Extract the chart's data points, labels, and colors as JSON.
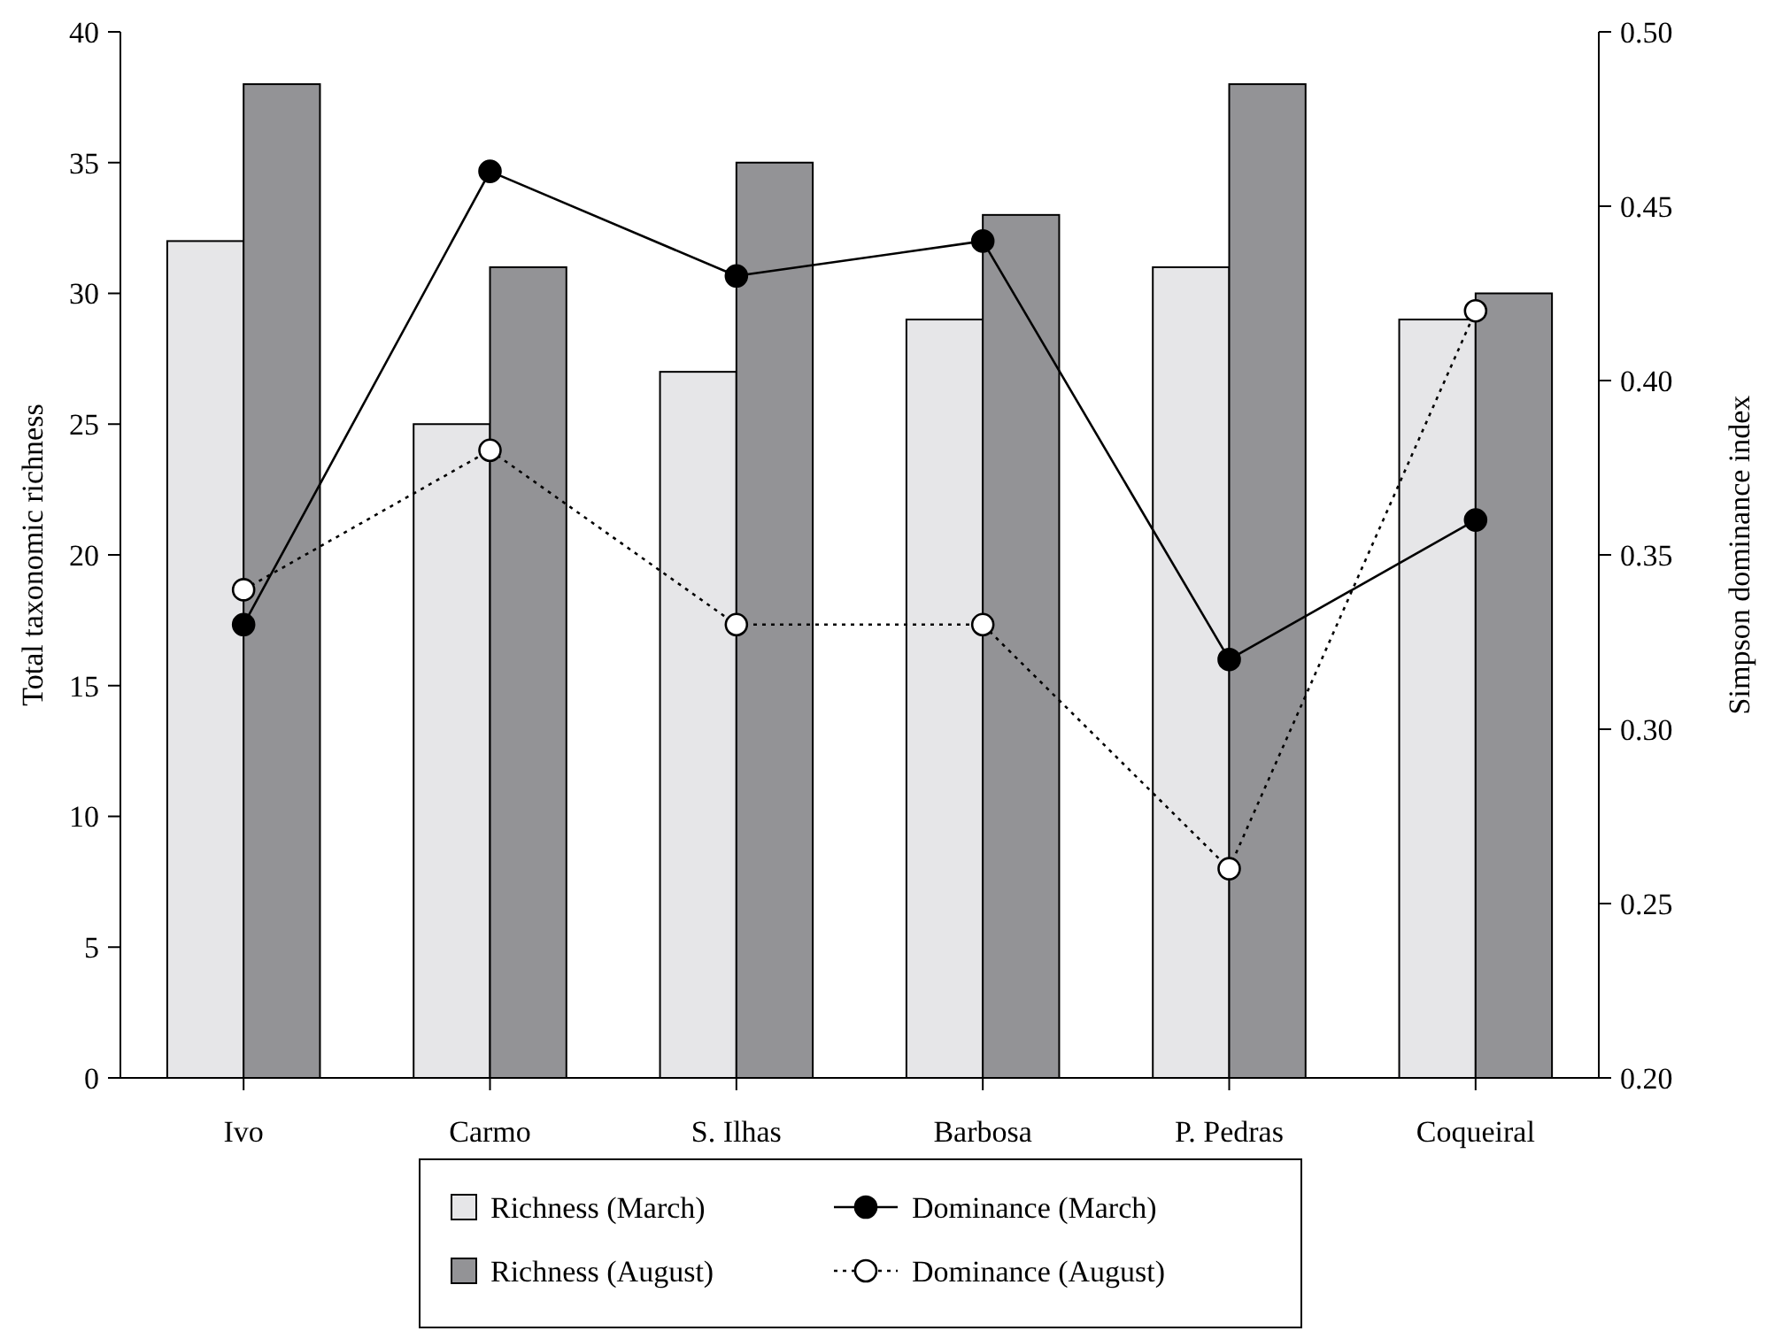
{
  "chart_data": {
    "type": "bar",
    "xlabel": null,
    "ylabel": "Total taxonomic richness",
    "y2label": "Simpson dominance index",
    "categories": [
      "Ivo",
      "Carmo",
      "S. Ilhas",
      "Barbosa",
      "P. Pedras",
      "Coqueiral"
    ],
    "series": [
      {
        "name": "Richness (March)",
        "color": "#e6e6e8",
        "values": [
          32,
          25,
          27,
          29,
          31,
          29
        ]
      },
      {
        "name": "Richness (August)",
        "color": "#939396",
        "values": [
          38,
          31,
          35,
          33,
          38,
          30
        ]
      },
      {
        "name": "Dominance (March)",
        "type": "line",
        "axis": "y2",
        "color": "#000000",
        "line_style": "solid",
        "values": [
          0.33,
          0.46,
          0.43,
          0.44,
          0.32,
          0.36
        ]
      },
      {
        "name": "Dominance (August)",
        "type": "line",
        "axis": "y2",
        "color": "#000000",
        "line_style": "dotted",
        "values": [
          0.34,
          0.38,
          0.33,
          0.33,
          0.26,
          0.42
        ]
      }
    ],
    "ylim": [
      0,
      40
    ],
    "yticks": [
      0,
      5,
      10,
      15,
      20,
      25,
      30,
      35,
      40
    ],
    "y2lim": [
      0.2,
      0.5
    ],
    "y2ticks": [
      {
        "value": 0.2,
        "label": "0.20"
      },
      {
        "value": 0.25,
        "label": "0.25"
      },
      {
        "value": 0.3,
        "label": "0.30"
      },
      {
        "value": 0.35,
        "label": "0.35"
      },
      {
        "value": 0.4,
        "label": "0.40"
      },
      {
        "value": 0.45,
        "label": "0.45"
      },
      {
        "value": 0.5,
        "label": "0.50"
      }
    ],
    "marker": "circle",
    "legend": "bottom",
    "grid": false
  }
}
